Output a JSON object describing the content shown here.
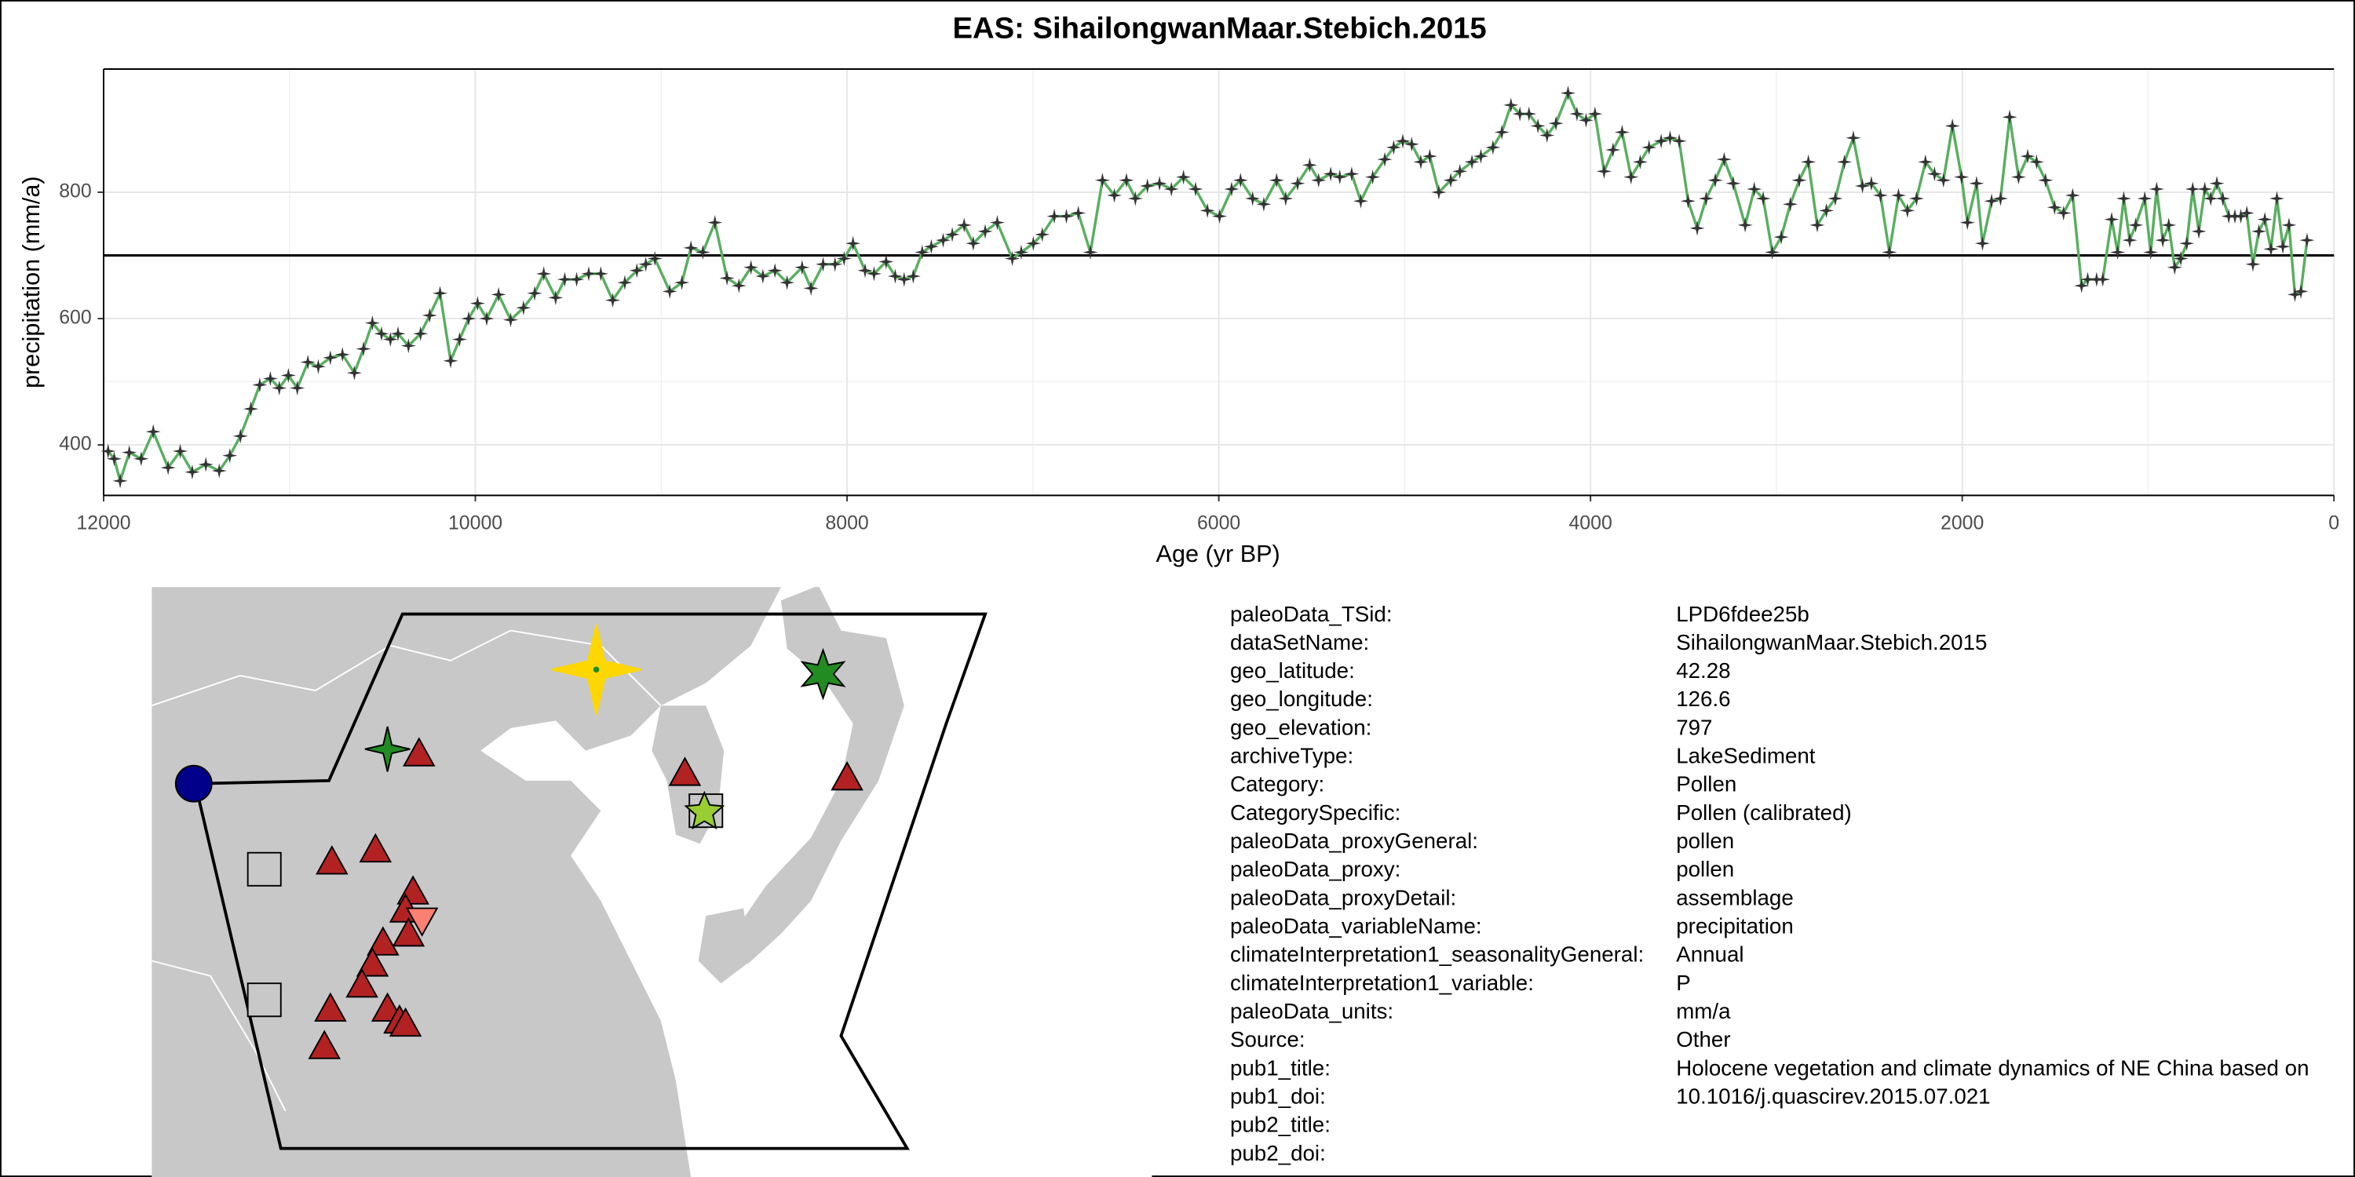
{
  "chart_data": {
    "type": "line",
    "title": "EAS: SihailongwanMaar.Stebich.2015",
    "x_label": "Age (yr BP)",
    "y_label": "precipitation (mm/a)",
    "xlim": [
      12000,
      0
    ],
    "xticks": [
      12000,
      10000,
      8000,
      6000,
      4000,
      2000,
      0
    ],
    "ylim": [
      320,
      995
    ],
    "yticks": [
      400,
      600,
      800
    ],
    "grid": true,
    "hline": 700,
    "series": [
      {
        "name": "precipitation",
        "color": "#5aae61",
        "marker_color": "#333333",
        "x": [
          11976,
          11943,
          11911,
          11862,
          11798,
          11733,
          11653,
          11588,
          11523,
          11450,
          11378,
          11321,
          11264,
          11208,
          11160,
          11103,
          11055,
          11006,
          10958,
          10901,
          10845,
          10780,
          10715,
          10651,
          10602,
          10554,
          10505,
          10457,
          10416,
          10360,
          10295,
          10246,
          10190,
          10133,
          10085,
          10036,
          9988,
          9939,
          9875,
          9810,
          9741,
          9681,
          9632,
          9568,
          9519,
          9455,
          9390,
          9325,
          9261,
          9196,
          9131,
          9083,
          9034,
          8954,
          8889,
          8840,
          8776,
          8711,
          8646,
          8582,
          8517,
          8453,
          8388,
          8323,
          8242,
          8194,
          8129,
          8065,
          8016,
          7968,
          7903,
          7855,
          7790,
          7741,
          7693,
          7644,
          7596,
          7547,
          7483,
          7434,
          7370,
          7321,
          7257,
          7192,
          7111,
          7063,
          6998,
          6950,
          6885,
          6820,
          6756,
          6691,
          6626,
          6562,
          6497,
          6449,
          6384,
          6319,
          6255,
          6190,
          6125,
          6061,
          5996,
          5931,
          5883,
          5818,
          5758,
          5689,
          5640,
          5576,
          5511,
          5463,
          5398,
          5349,
          5285,
          5236,
          5172,
          5107,
          5059,
          5010,
          4962,
          4913,
          4865,
          4816,
          4752,
          4703,
          4638,
          4590,
          4525,
          4477,
          4428,
          4380,
          4331,
          4283,
          4234,
          4186,
          4121,
          4073,
          4024,
          3976,
          3927,
          3879,
          3830,
          3782,
          3733,
          3685,
          3620,
          3572,
          3523,
          3475,
          3426,
          3378,
          3329,
          3281,
          3232,
          3168,
          3119,
          3071,
          3022,
          2974,
          2925,
          2877,
          2828,
          2780,
          2731,
          2683,
          2634,
          2586,
          2537,
          2489,
          2440,
          2392,
          2343,
          2295,
          2246,
          2198,
          2149,
          2101,
          2053,
          2004,
          1972,
          1923,
          1891,
          1842,
          1794,
          1745,
          1697,
          1648,
          1600,
          1552,
          1503,
          1455,
          1406,
          1358,
          1325,
          1277,
          1244,
          1196,
          1164,
          1131,
          1099,
          1067,
          1018,
          986,
          954,
          921,
          889,
          857,
          824,
          792,
          760,
          727,
          695,
          663,
          630,
          598,
          566,
          533,
          501,
          469,
          436,
          404,
          372,
          339,
          307,
          275,
          242,
          210,
          178,
          145
        ],
        "values": [
          390,
          378,
          343,
          388,
          378,
          421,
          364,
          390,
          357,
          369,
          359,
          383,
          414,
          457,
          495,
          505,
          490,
          510,
          490,
          531,
          524,
          538,
          543,
          514,
          552,
          593,
          576,
          567,
          576,
          557,
          576,
          605,
          640,
          533,
          567,
          600,
          624,
          600,
          638,
          598,
          617,
          640,
          671,
          633,
          662,
          662,
          671,
          671,
          629,
          657,
          676,
          686,
          695,
          643,
          657,
          712,
          705,
          752,
          664,
          652,
          681,
          667,
          676,
          657,
          681,
          648,
          686,
          686,
          695,
          719,
          676,
          671,
          690,
          667,
          662,
          667,
          705,
          714,
          724,
          733,
          748,
          719,
          738,
          752,
          695,
          705,
          719,
          733,
          762,
          762,
          767,
          705,
          819,
          795,
          819,
          790,
          810,
          814,
          805,
          824,
          805,
          771,
          762,
          805,
          819,
          790,
          781,
          819,
          790,
          814,
          843,
          819,
          829,
          824,
          829,
          786,
          824,
          852,
          871,
          881,
          876,
          848,
          857,
          800,
          819,
          833,
          848,
          857,
          871,
          895,
          938,
          924,
          924,
          905,
          890,
          909,
          957,
          924,
          914,
          924,
          833,
          867,
          895,
          824,
          848,
          871,
          881,
          886,
          881,
          786,
          743,
          790,
          819,
          852,
          814,
          748,
          805,
          790,
          705,
          729,
          781,
          819,
          848,
          748,
          771,
          790,
          848,
          886,
          810,
          814,
          795,
          705,
          795,
          771,
          790,
          848,
          829,
          819,
          905,
          824,
          752,
          814,
          719,
          786,
          790,
          919,
          824,
          857,
          848,
          819,
          776,
          767,
          795,
          652,
          662,
          662,
          662,
          757,
          705,
          790,
          724,
          748,
          790,
          705,
          805,
          724,
          748,
          681,
          695,
          719,
          805,
          738,
          805,
          790,
          814,
          790,
          762,
          762,
          762,
          767,
          686,
          738,
          757,
          710,
          790,
          714,
          748,
          638,
          643,
          724
        ]
      }
    ]
  },
  "metadata": {
    "rows": [
      [
        "paleoData_TSid:",
        "LPD6fdee25b"
      ],
      [
        "dataSetName:",
        "SihailongwanMaar.Stebich.2015"
      ],
      [
        "geo_latitude:",
        "42.28"
      ],
      [
        "geo_longitude:",
        "126.6"
      ],
      [
        "geo_elevation:",
        "797"
      ],
      [
        "archiveType:",
        "LakeSediment"
      ],
      [
        "Category:",
        "Pollen"
      ],
      [
        "CategorySpecific:",
        "Pollen (calibrated)"
      ],
      [
        "paleoData_proxyGeneral:",
        "pollen"
      ],
      [
        "paleoData_proxy:",
        "pollen"
      ],
      [
        "paleoData_proxyDetail:",
        "assemblage"
      ],
      [
        "paleoData_variableName:",
        "precipitation"
      ],
      [
        "climateInterpretation1_seasonalityGeneral:",
        "Annual"
      ],
      [
        "climateInterpretation1_variable:",
        "P"
      ],
      [
        "paleoData_units:",
        "mm/a"
      ],
      [
        "Source:",
        "Other"
      ],
      [
        "pub1_title:",
        "Holocene vegetation and climate dynamics of NE China based on"
      ],
      [
        "pub1_doi:",
        "10.1016/j.quascirev.2015.07.021"
      ],
      [
        "pub2_title:"
      ],
      [
        "pub2_doi:"
      ]
    ]
  }
}
